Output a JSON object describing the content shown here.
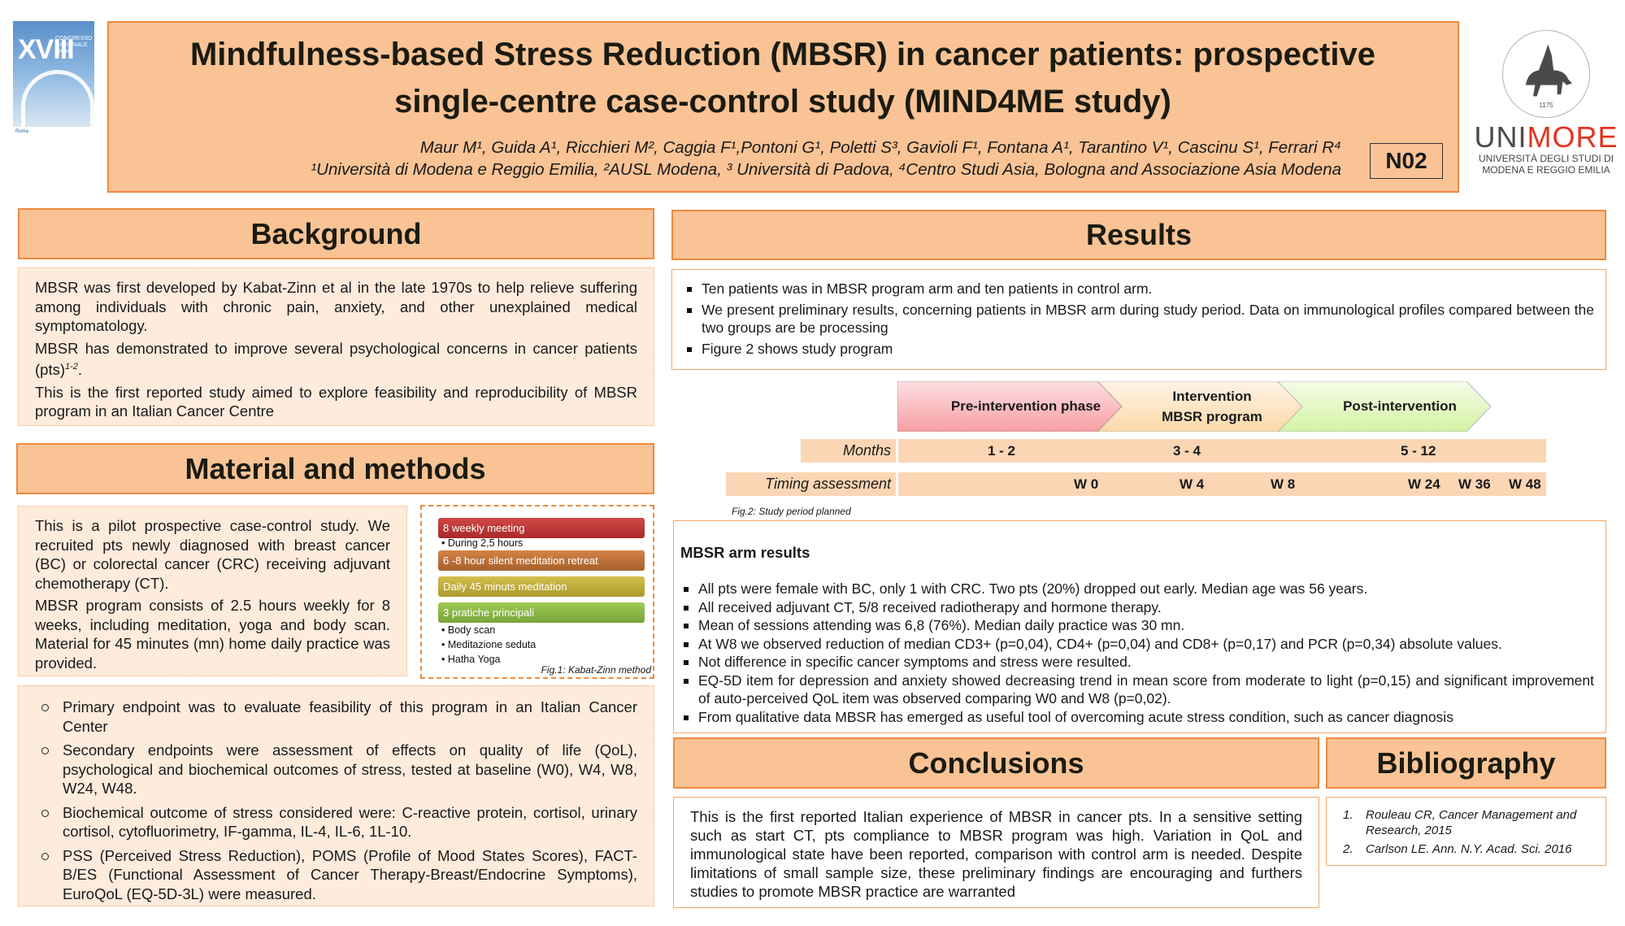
{
  "title": {
    "line1": "Mindfulness-based Stress Reduction (MBSR) in cancer patients: prospective",
    "line2": "single-centre case-control study (MIND4ME study)",
    "authors": "Maur M¹, Guida A¹, Ricchieri M², Caggia F¹,Pontoni G¹, Poletti S³, Gavioli F¹, Fontana A¹, Tarantino V¹, Cascinu S¹, Ferrari R⁴",
    "affiliations": "¹Università di Modena e Reggio Emilia, ²AUSL Modena, ³ Università di Padova, ⁴Centro Studi Asia, Bologna and Associazione Asia Modena",
    "code": "N02"
  },
  "logos": {
    "conference": {
      "numeral": "XVIII",
      "text": "CONGRESSO NAZIONALE AIOM",
      "footer": "Roma"
    },
    "university": {
      "uni": "UNI",
      "more": "MORE",
      "sub_line1": "UNIVERSITÀ DEGLI STUDI DI",
      "sub_line2": "MODENA E REGGIO EMILIA",
      "seal_year": "1175"
    }
  },
  "background": {
    "heading": "Background",
    "paragraphs": [
      "MBSR was first developed by Kabat-Zinn et al in the late 1970s to help relieve suffering among individuals with chronic pain, anxiety, and other unexplained medical symptomatology.",
      "MBSR has demonstrated to improve several psychological concerns in cancer patients (pts)",
      "This is the first reported study aimed to explore feasibility and reproducibility of MBSR program in an Italian Cancer Centre"
    ],
    "citation": "1-2",
    "citation_end": "."
  },
  "methods": {
    "heading": "Material and methods",
    "paragraphs": [
      "This is a pilot prospective case-control study. We recruited pts newly diagnosed with breast cancer (BC) or colorectal cancer (CRC) receiving adjuvant chemotherapy (CT).",
      "MBSR program consists of 2.5 hours weekly for 8 weeks, including meditation, yoga and body scan. Material for 45 minutes (mn) home daily practice was provided."
    ],
    "figure": {
      "bars": [
        "8 weekly meeting",
        "6 -8 hour silent meditation retreat",
        "Daily 45 minuts meditation",
        "3 pratiche principali"
      ],
      "sub1": "During 2,5 hours",
      "sub4": [
        "Body scan",
        "Meditazione seduta",
        "Hatha Yoga"
      ],
      "caption": "Fig.1: Kabat-Zinn method",
      "colors": [
        "#c03a3a",
        "#bd7237",
        "#c2ad3c",
        "#8cb848"
      ]
    },
    "endpoints": [
      "Primary endpoint was to evaluate feasibility of this program in an Italian Cancer Center",
      "Secondary endpoints were assessment of effects on quality of life (QoL), psychological and biochemical outcomes of stress, tested at baseline (W0), W4, W8, W24, W48.",
      "Biochemical outcome of stress considered were: C-reactive protein, cortisol, urinary cortisol, cytofluorimetry, IF-gamma, IL-4, IL-6, 1L-10.",
      "PSS (Perceived Stress Reduction), POMS (Profile of Mood States Scores), FACT-B/ES (Functional Assessment of Cancer Therapy-Breast/Endocrine Symptoms), EuroQoL (EQ-5D-3L) were measured."
    ]
  },
  "results": {
    "heading": "Results",
    "bullets": [
      "Ten patients was in MBSR program arm and ten patients in control arm.",
      "We present preliminary results, concerning patients in MBSR arm during study period. Data on immunological profiles compared between the two groups are be processing",
      "Figure 2 shows study program"
    ],
    "figure": {
      "phases": [
        "Pre-intervention phase",
        "Intervention",
        "MBSR program",
        "Post-intervention"
      ],
      "months_label": "Months",
      "months": [
        "1 - 2",
        "3 - 4",
        "5 - 12"
      ],
      "timing_label": "Timing assessment",
      "timing": [
        "W 0",
        "W 4",
        "W 8",
        "W 24",
        "W 36",
        "W 48"
      ],
      "caption": "Fig.2: Study period planned"
    },
    "mbsr_title": "MBSR arm results",
    "mbsr_bullets": [
      "All pts were female with BC, only 1 with CRC. Two pts (20%) dropped out early. Median age was 56 years.",
      "All received adjuvant CT, 5/8 received radiotherapy and hormone therapy.",
      "Mean of sessions attending was 6,8 (76%). Median daily practice was 30 mn.",
      "At W8 we observed reduction of median CD3+ (p=0,04), CD4+ (p=0,04) and CD8+ (p=0,17) and PCR (p=0,34) absolute values.",
      "Not difference in specific cancer symptoms and stress were resulted.",
      "EQ-5D item for depression and anxiety showed decreasing trend in mean score from moderate to light (p=0,15) and significant improvement of auto-perceived QoL item was observed comparing W0 and W8 (p=0,02).",
      "From qualitative data MBSR has emerged as useful tool of overcoming acute stress condition, such as cancer diagnosis"
    ]
  },
  "conclusions": {
    "heading": "Conclusions",
    "text": "This is the first reported Italian experience of MBSR in cancer pts. In a sensitive setting such as start CT, pts compliance to MBSR program was high. Variation in QoL and immunological state have been reported, comparison with control arm is needed. Despite limitations of small sample size, these preliminary findings are encouraging and furthers studies to promote MBSR practice are warranted"
  },
  "bibliography": {
    "heading": "Bibliography",
    "items": [
      {
        "num": "1.",
        "text": "Rouleau CR, Cancer Management and Research, 2015"
      },
      {
        "num": "2.",
        "text": "Carlson LE. Ann. N.Y. Acad. Sci. 2016"
      }
    ]
  },
  "colors": {
    "header_fill": "#f9c395",
    "header_border": "#ec8a3f",
    "body_peach": "#fdebdc",
    "accent_red": "#e3341f"
  }
}
